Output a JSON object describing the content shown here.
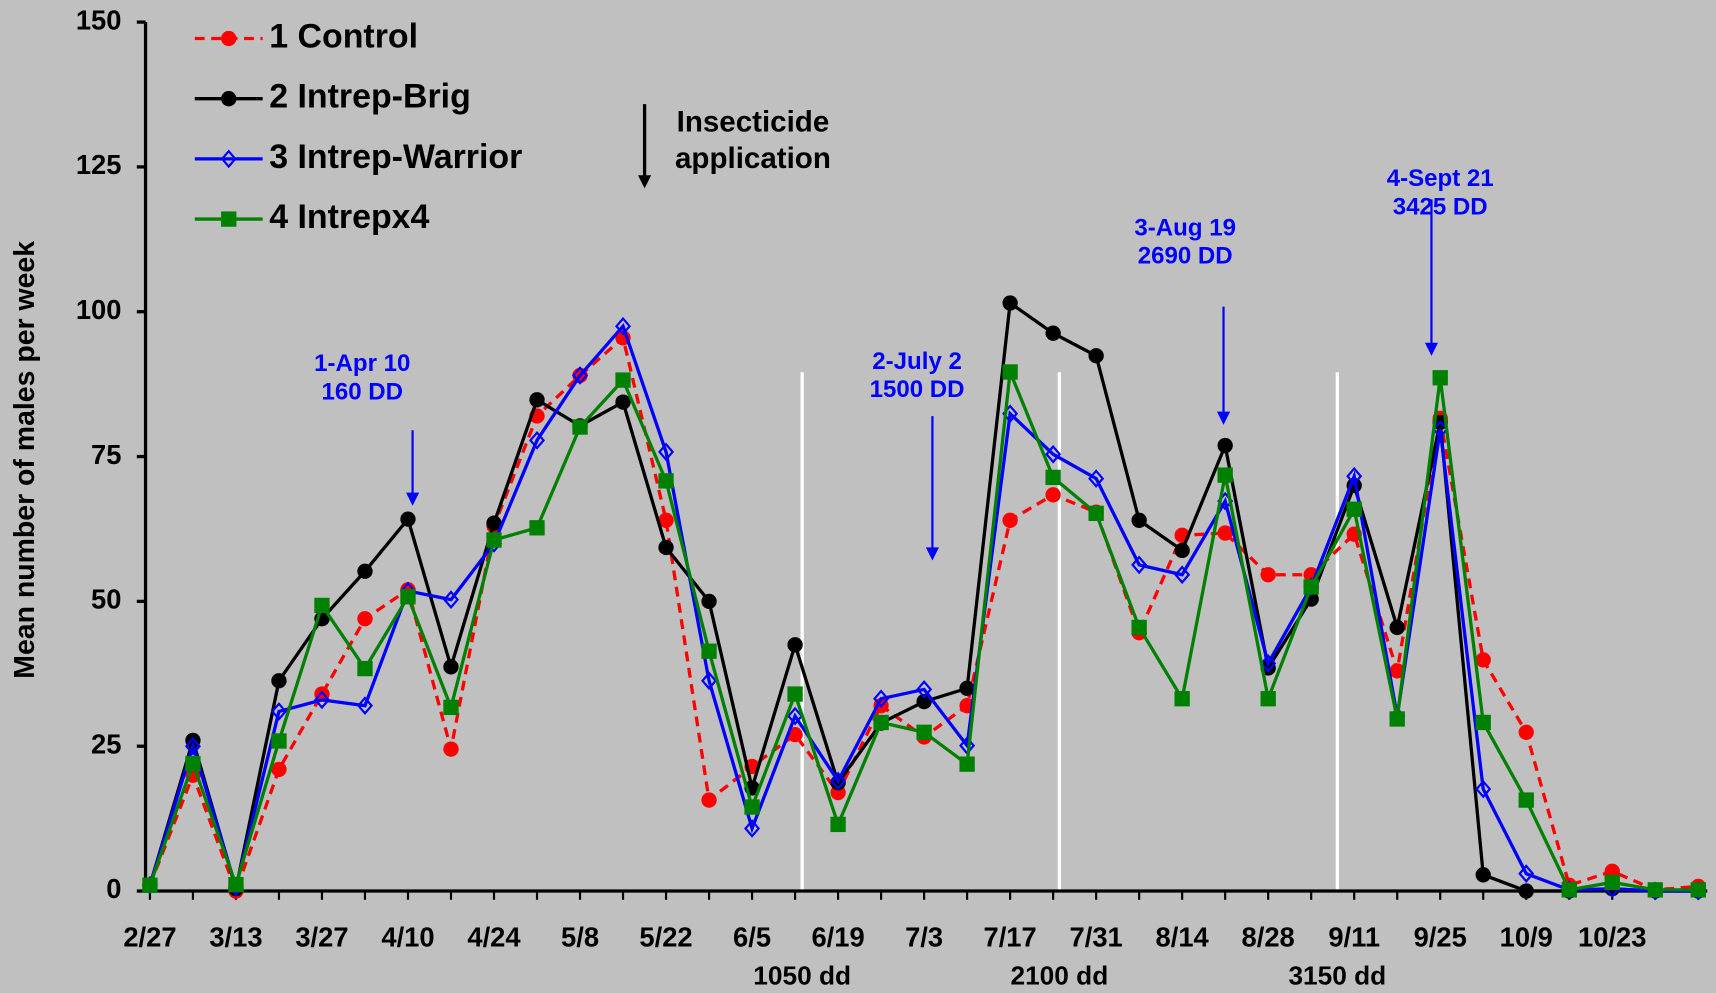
{
  "chart_data": {
    "type": "line",
    "ylabel": "Mean number of males per week",
    "categories": [
      "2/27",
      null,
      "3/13",
      null,
      "3/27",
      null,
      "4/10",
      null,
      "4/24",
      null,
      "5/8",
      null,
      "5/22",
      null,
      "6/5",
      null,
      "6/19",
      null,
      "7/3",
      null,
      "7/17",
      null,
      "7/31",
      null,
      "8/14",
      null,
      "8/28",
      null,
      "9/11",
      null,
      "9/25",
      null,
      "10/9",
      null,
      "10/23",
      null,
      null
    ],
    "ylim": [
      0,
      150
    ],
    "yticks": [
      0,
      25,
      50,
      75,
      100,
      125,
      150
    ],
    "grid": false,
    "legend": "upper left",
    "series": [
      {
        "name": "1 Control",
        "color": "#ff0000",
        "dash": true,
        "marker": "circle",
        "values": [
          1,
          20,
          0,
          21,
          34,
          47,
          52,
          24.5,
          63,
          82,
          89,
          95.5,
          64,
          15.7,
          21.5,
          27,
          17,
          32,
          26.6,
          32,
          64,
          68.4,
          65.4,
          44.6,
          61.4,
          61.8,
          54.6,
          54.6,
          61.6,
          38,
          81.6,
          39.9,
          27.4,
          1,
          3.4,
          0.2,
          0.8
        ]
      },
      {
        "name": "2 Intrep-Brig",
        "color": "#000000",
        "dash": false,
        "marker": "circle",
        "values": [
          1,
          26,
          0.4,
          36.3,
          47,
          55.2,
          64.2,
          38.7,
          63.5,
          84.8,
          80.3,
          84.4,
          59.3,
          50,
          17.8,
          42.5,
          18.7,
          29,
          32.7,
          35,
          101.5,
          96.3,
          92.4,
          64,
          58.8,
          76.9,
          38.5,
          50.4,
          70,
          45.5,
          80.9,
          2.8,
          0,
          0,
          0.4,
          0,
          0
        ]
      },
      {
        "name": "3 Intrep-Warrior",
        "color": "#0000ff",
        "dash": false,
        "marker": "diamond",
        "values": [
          1,
          25,
          0.7,
          31,
          33,
          32,
          51.8,
          50.3,
          60,
          77.8,
          89,
          97.5,
          75.8,
          36.3,
          10.8,
          30.2,
          19,
          33.2,
          34.8,
          25.1,
          82.4,
          75.4,
          71.2,
          56.3,
          54.6,
          67.3,
          39.3,
          52.5,
          71.6,
          30.2,
          79.7,
          17.6,
          3,
          0.2,
          0.4,
          0,
          0
        ]
      },
      {
        "name": "4 Intrepx4",
        "color": "#008000",
        "dash": false,
        "marker": "square",
        "values": [
          1,
          22,
          1.1,
          25.9,
          49.3,
          38.4,
          50.8,
          31.7,
          60.6,
          62.7,
          80.1,
          88.2,
          70.8,
          41.4,
          14.5,
          34,
          11.5,
          29.1,
          27.4,
          21.9,
          89.6,
          71.4,
          65.2,
          45.5,
          33.2,
          71.8,
          33.2,
          52.5,
          65.9,
          29.7,
          88.6,
          29.1,
          15.7,
          0.2,
          1.5,
          0.2,
          0.2
        ]
      }
    ],
    "annotations": [
      {
        "lines": [
          "1-Apr 10",
          "160 DD"
        ],
        "color": "#0000ff"
      },
      {
        "lines": [
          "2-July 2",
          "1500 DD"
        ],
        "color": "#0000ff"
      },
      {
        "lines": [
          "3-Aug 19",
          "2690 DD"
        ],
        "color": "#0000ff"
      },
      {
        "lines": [
          "4-Sept 21",
          "3425 DD"
        ],
        "color": "#0000ff"
      },
      {
        "lines": [
          "Insecticide",
          "application"
        ],
        "color": "#000000"
      }
    ],
    "dd_markers": [
      "1050 dd",
      "2100 dd",
      "3150 dd"
    ]
  }
}
